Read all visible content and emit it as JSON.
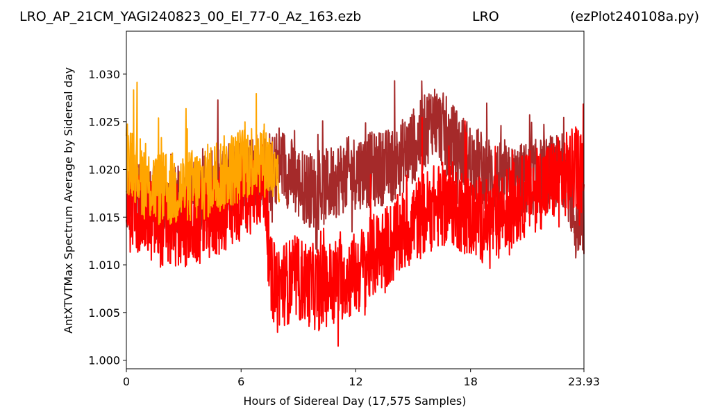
{
  "chart_data": {
    "type": "line",
    "title_left": "LRO_AP_21CM_YAGI240823_00_El_77-0_Az_163.ezb",
    "title_center": "LRO",
    "title_right": "(ezPlot240108a.py)",
    "xlabel": "Hours of Sidereal Day  (17,575 Samples)",
    "ylabel": "AntXTVTMax Spectrum Average by Sidereal day",
    "xlim": [
      0,
      23.93
    ],
    "ylim": [
      0.9991,
      1.0345
    ],
    "x_ticks": [
      {
        "value": 0,
        "label": "0"
      },
      {
        "value": 6,
        "label": "6"
      },
      {
        "value": 12,
        "label": "12"
      },
      {
        "value": 18,
        "label": "18"
      },
      {
        "value": 23.93,
        "label": "23.93"
      }
    ],
    "y_ticks": [
      {
        "value": 1.0,
        "label": "1.000"
      },
      {
        "value": 1.005,
        "label": "1.005"
      },
      {
        "value": 1.01,
        "label": "1.010"
      },
      {
        "value": 1.015,
        "label": "1.015"
      },
      {
        "value": 1.02,
        "label": "1.020"
      },
      {
        "value": 1.025,
        "label": "1.025"
      },
      {
        "value": 1.03,
        "label": "1.030"
      }
    ],
    "grid": false,
    "legend": "none",
    "series": [
      {
        "color": "#a52a2a",
        "x": [
          0,
          0.5,
          1,
          2,
          3,
          4,
          5,
          6,
          7,
          7.5,
          8,
          9,
          10,
          11,
          12,
          13,
          14,
          15,
          15.5,
          16,
          17,
          18,
          19,
          20,
          21,
          22,
          23,
          23.5,
          23.93
        ],
        "y": [
          1.0165,
          1.0175,
          1.0168,
          1.0162,
          1.0165,
          1.0175,
          1.0185,
          1.0198,
          1.02,
          1.019,
          1.021,
          1.0185,
          1.0175,
          1.019,
          1.0198,
          1.02,
          1.0205,
          1.0225,
          1.0235,
          1.0255,
          1.023,
          1.021,
          1.0195,
          1.0185,
          1.019,
          1.0195,
          1.02,
          1.014,
          1.015
        ],
        "noise": 0.004
      },
      {
        "color": "#ff0000",
        "x": [
          0,
          0.5,
          1,
          2,
          3,
          4,
          5,
          6,
          7,
          7.3,
          7.5,
          8,
          9,
          10,
          11,
          12,
          13,
          14,
          15,
          16,
          17,
          18,
          19,
          20,
          21,
          22,
          23,
          23.93
        ],
        "y": [
          1.0155,
          1.016,
          1.015,
          1.014,
          1.014,
          1.0145,
          1.0155,
          1.017,
          1.0185,
          1.018,
          1.0085,
          1.008,
          1.0085,
          1.0075,
          1.0085,
          1.009,
          1.011,
          1.0125,
          1.0145,
          1.016,
          1.0165,
          1.015,
          1.0145,
          1.016,
          1.0175,
          1.0185,
          1.0195,
          1.0205
        ],
        "noise": 0.0045
      },
      {
        "color": "#ffa500",
        "x": [
          0,
          0.3,
          0.6,
          1,
          2,
          3,
          4,
          5,
          6,
          7,
          7.5,
          8.0
        ],
        "y": [
          1.0215,
          1.021,
          1.02,
          1.0185,
          1.0178,
          1.018,
          1.0185,
          1.0195,
          1.0205,
          1.0215,
          1.0205,
          1.017
        ],
        "noise": 0.004
      }
    ]
  }
}
